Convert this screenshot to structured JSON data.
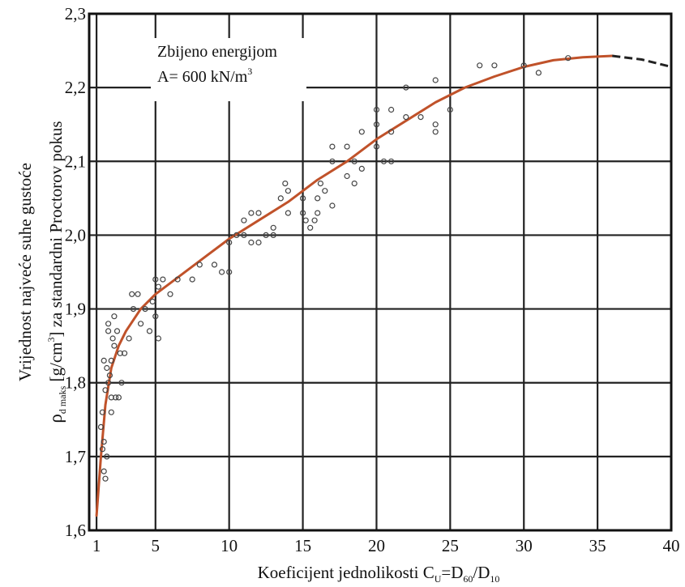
{
  "chart_data": {
    "type": "scatter",
    "title": "",
    "xlabel": {
      "prefix": "Koeficijent jednolikosti C",
      "sub1": "U",
      "mid": "=D",
      "sub2": "60",
      "mid2": "/D",
      "sub3": "10"
    },
    "ylabel_line1": "Vrijednost najveće  suhe gustoće",
    "ylabel_line2": {
      "rho": "ρ",
      "sub": "d maks",
      "bracket_open": " [g/cm",
      "sup": "3",
      "rest": "] za standardni Proctorov pokus"
    },
    "annotation_lines": [
      "Zbijeno energijom",
      "A= 600 kN/m"
    ],
    "annotation_sup": "3",
    "xlim": [
      0.5,
      40
    ],
    "ylim": [
      1.6,
      2.3
    ],
    "x_ticks": [
      {
        "value": 1,
        "label": "1"
      },
      {
        "value": 5,
        "label": "5"
      },
      {
        "value": 10,
        "label": "10"
      },
      {
        "value": 15,
        "label": "15"
      },
      {
        "value": 20,
        "label": "20"
      },
      {
        "value": 25,
        "label": "25"
      },
      {
        "value": 30,
        "label": "30"
      },
      {
        "value": 35,
        "label": "35"
      },
      {
        "value": 40,
        "label": "40"
      }
    ],
    "y_ticks": [
      {
        "value": 1.6,
        "label": "1,6"
      },
      {
        "value": 1.7,
        "label": "1,7"
      },
      {
        "value": 1.8,
        "label": "1,8"
      },
      {
        "value": 1.9,
        "label": "1,9"
      },
      {
        "value": 2.0,
        "label": "2,0"
      },
      {
        "value": 2.1,
        "label": "2,1"
      },
      {
        "value": 2.2,
        "label": "2,2"
      },
      {
        "value": 2.3,
        "label": "2,3"
      }
    ],
    "grid": true,
    "fit_curve_color": "#c0522a",
    "fit_curve": [
      [
        1.0,
        1.62
      ],
      [
        1.3,
        1.7
      ],
      [
        1.6,
        1.77
      ],
      [
        2.0,
        1.82
      ],
      [
        2.5,
        1.85
      ],
      [
        3.0,
        1.87
      ],
      [
        4.0,
        1.9
      ],
      [
        5.0,
        1.92
      ],
      [
        6.0,
        1.935
      ],
      [
        8.0,
        1.965
      ],
      [
        10.0,
        1.995
      ],
      [
        12.0,
        2.02
      ],
      [
        14.0,
        2.045
      ],
      [
        16.0,
        2.075
      ],
      [
        18.0,
        2.1
      ],
      [
        20.0,
        2.13
      ],
      [
        22.0,
        2.155
      ],
      [
        24.0,
        2.18
      ],
      [
        26.0,
        2.2
      ],
      [
        28.0,
        2.215
      ],
      [
        30.0,
        2.228
      ],
      [
        32.0,
        2.237
      ],
      [
        34.0,
        2.241
      ],
      [
        36.0,
        2.243
      ]
    ],
    "fit_curve_dashed": [
      [
        36.0,
        2.243
      ],
      [
        38.0,
        2.238
      ],
      [
        40.0,
        2.228
      ]
    ],
    "points": [
      [
        1.3,
        1.74
      ],
      [
        1.4,
        1.71
      ],
      [
        1.5,
        1.68
      ],
      [
        1.6,
        1.67
      ],
      [
        1.5,
        1.72
      ],
      [
        1.7,
        1.7
      ],
      [
        1.4,
        1.76
      ],
      [
        1.6,
        1.79
      ],
      [
        1.8,
        1.8
      ],
      [
        1.7,
        1.82
      ],
      [
        1.5,
        1.83
      ],
      [
        1.9,
        1.81
      ],
      [
        2.0,
        1.83
      ],
      [
        2.1,
        1.86
      ],
      [
        1.8,
        1.87
      ],
      [
        2.2,
        1.85
      ],
      [
        2.4,
        1.87
      ],
      [
        2.6,
        1.84
      ],
      [
        2.3,
        1.78
      ],
      [
        2.0,
        1.78
      ],
      [
        2.7,
        1.8
      ],
      [
        2.5,
        1.78
      ],
      [
        2.9,
        1.84
      ],
      [
        3.2,
        1.86
      ],
      [
        2.0,
        1.76
      ],
      [
        1.8,
        1.88
      ],
      [
        2.2,
        1.89
      ],
      [
        3.5,
        1.9
      ],
      [
        3.8,
        1.92
      ],
      [
        3.4,
        1.92
      ],
      [
        4.0,
        1.88
      ],
      [
        4.3,
        1.9
      ],
      [
        4.8,
        1.91
      ],
      [
        5.0,
        1.94
      ],
      [
        5.2,
        1.93
      ],
      [
        5.5,
        1.94
      ],
      [
        5.0,
        1.89
      ],
      [
        5.2,
        1.86
      ],
      [
        4.6,
        1.87
      ],
      [
        6.0,
        1.92
      ],
      [
        6.5,
        1.94
      ],
      [
        7.5,
        1.94
      ],
      [
        8.0,
        1.96
      ],
      [
        9.0,
        1.96
      ],
      [
        9.5,
        1.95
      ],
      [
        10.0,
        1.99
      ],
      [
        10.0,
        1.95
      ],
      [
        10.5,
        2.0
      ],
      [
        11.0,
        2.0
      ],
      [
        11.0,
        2.02
      ],
      [
        11.5,
        2.03
      ],
      [
        11.5,
        1.99
      ],
      [
        12.0,
        2.03
      ],
      [
        12.5,
        2.0
      ],
      [
        12.0,
        1.99
      ],
      [
        13.0,
        2.01
      ],
      [
        13.0,
        2.0
      ],
      [
        13.5,
        2.05
      ],
      [
        14.0,
        2.03
      ],
      [
        14.0,
        2.06
      ],
      [
        13.8,
        2.07
      ],
      [
        15.0,
        2.05
      ],
      [
        15.0,
        2.03
      ],
      [
        15.2,
        2.02
      ],
      [
        15.5,
        2.01
      ],
      [
        15.8,
        2.02
      ],
      [
        16.0,
        2.03
      ],
      [
        16.0,
        2.05
      ],
      [
        16.2,
        2.07
      ],
      [
        16.5,
        2.06
      ],
      [
        17.0,
        2.1
      ],
      [
        17.0,
        2.12
      ],
      [
        17.0,
        2.04
      ],
      [
        18.0,
        2.08
      ],
      [
        18.0,
        2.12
      ],
      [
        18.5,
        2.1
      ],
      [
        18.5,
        2.07
      ],
      [
        19.0,
        2.14
      ],
      [
        19.0,
        2.09
      ],
      [
        20.0,
        2.15
      ],
      [
        20.0,
        2.17
      ],
      [
        20.0,
        2.12
      ],
      [
        20.5,
        2.1
      ],
      [
        21.0,
        2.1
      ],
      [
        21.0,
        2.14
      ],
      [
        21.0,
        2.17
      ],
      [
        22.0,
        2.2
      ],
      [
        22.0,
        2.16
      ],
      [
        23.0,
        2.16
      ],
      [
        24.0,
        2.21
      ],
      [
        24.0,
        2.15
      ],
      [
        24.0,
        2.14
      ],
      [
        25.0,
        2.17
      ],
      [
        27.0,
        2.23
      ],
      [
        28.0,
        2.23
      ],
      [
        30.0,
        2.23
      ],
      [
        31.0,
        2.22
      ],
      [
        33.0,
        2.24
      ]
    ]
  }
}
